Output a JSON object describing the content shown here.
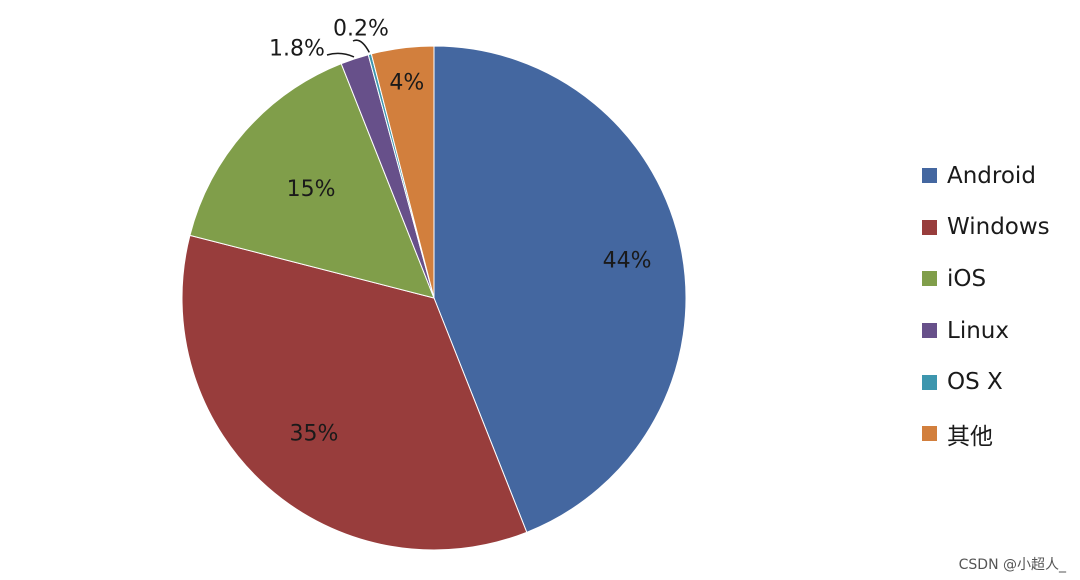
{
  "chart_data": {
    "type": "pie",
    "title": "",
    "categories": [
      "Android",
      "Windows",
      "iOS",
      "Linux",
      "OS X",
      "其他"
    ],
    "values": [
      44,
      35,
      15,
      1.8,
      0.2,
      4
    ],
    "labels": [
      "44%",
      "35%",
      "15%",
      "1.8%",
      "0.2%",
      "4%"
    ],
    "colors": [
      "#4467a0",
      "#983d3c",
      "#809e4a",
      "#67508a",
      "#3d96ae",
      "#d27f3d"
    ],
    "start_angle": "12 o'clock",
    "direction": "clockwise",
    "legend_position": "right"
  },
  "watermark": "CSDN @小超人_"
}
